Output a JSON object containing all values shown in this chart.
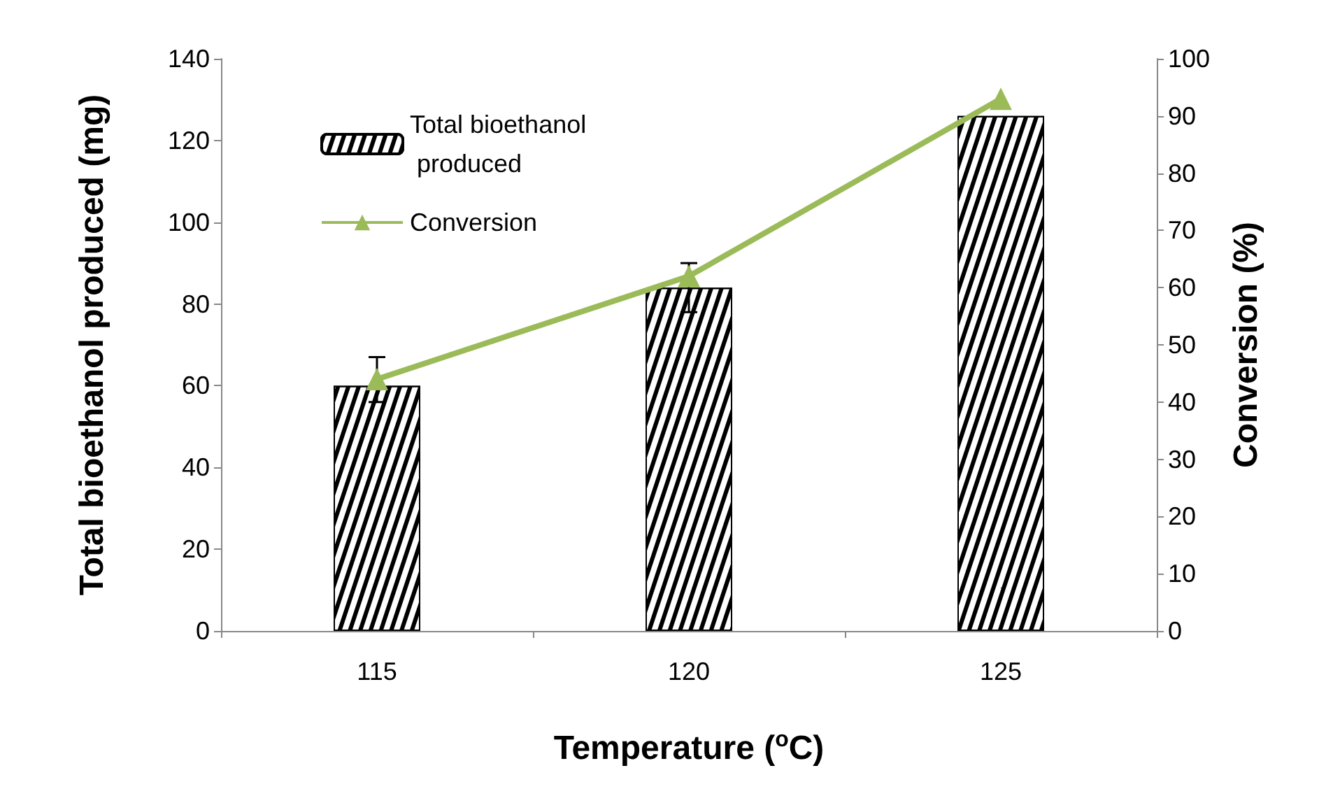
{
  "chart_data": {
    "type": "bar",
    "xlabel": "Temperature ($^{o}$C)",
    "ylabel": "Total bioethanol produced (mg)",
    "y2label": "Conversion (%)",
    "categories": [
      "115",
      "120",
      "125"
    ],
    "series": [
      {
        "name": "Total bioethanol produced",
        "color": "#000000",
        "values": [
          60,
          84,
          126
        ],
        "errors": [
          [
            56,
            67
          ],
          [
            78,
            90
          ],
          null
        ]
      },
      {
        "name": "Conversion",
        "type": "line",
        "axis": "y2",
        "color": "#9bbb59",
        "values": [
          44,
          62,
          93
        ],
        "marker": "triangle"
      }
    ],
    "ylim": [
      0,
      140
    ],
    "yticks": [
      0,
      20,
      40,
      60,
      80,
      100,
      120,
      140
    ],
    "y2lim": [
      0,
      100
    ],
    "y2ticks": [
      0,
      10,
      20,
      30,
      40,
      50,
      60,
      70,
      80,
      90,
      100
    ],
    "grid": false,
    "legend": "top left"
  }
}
